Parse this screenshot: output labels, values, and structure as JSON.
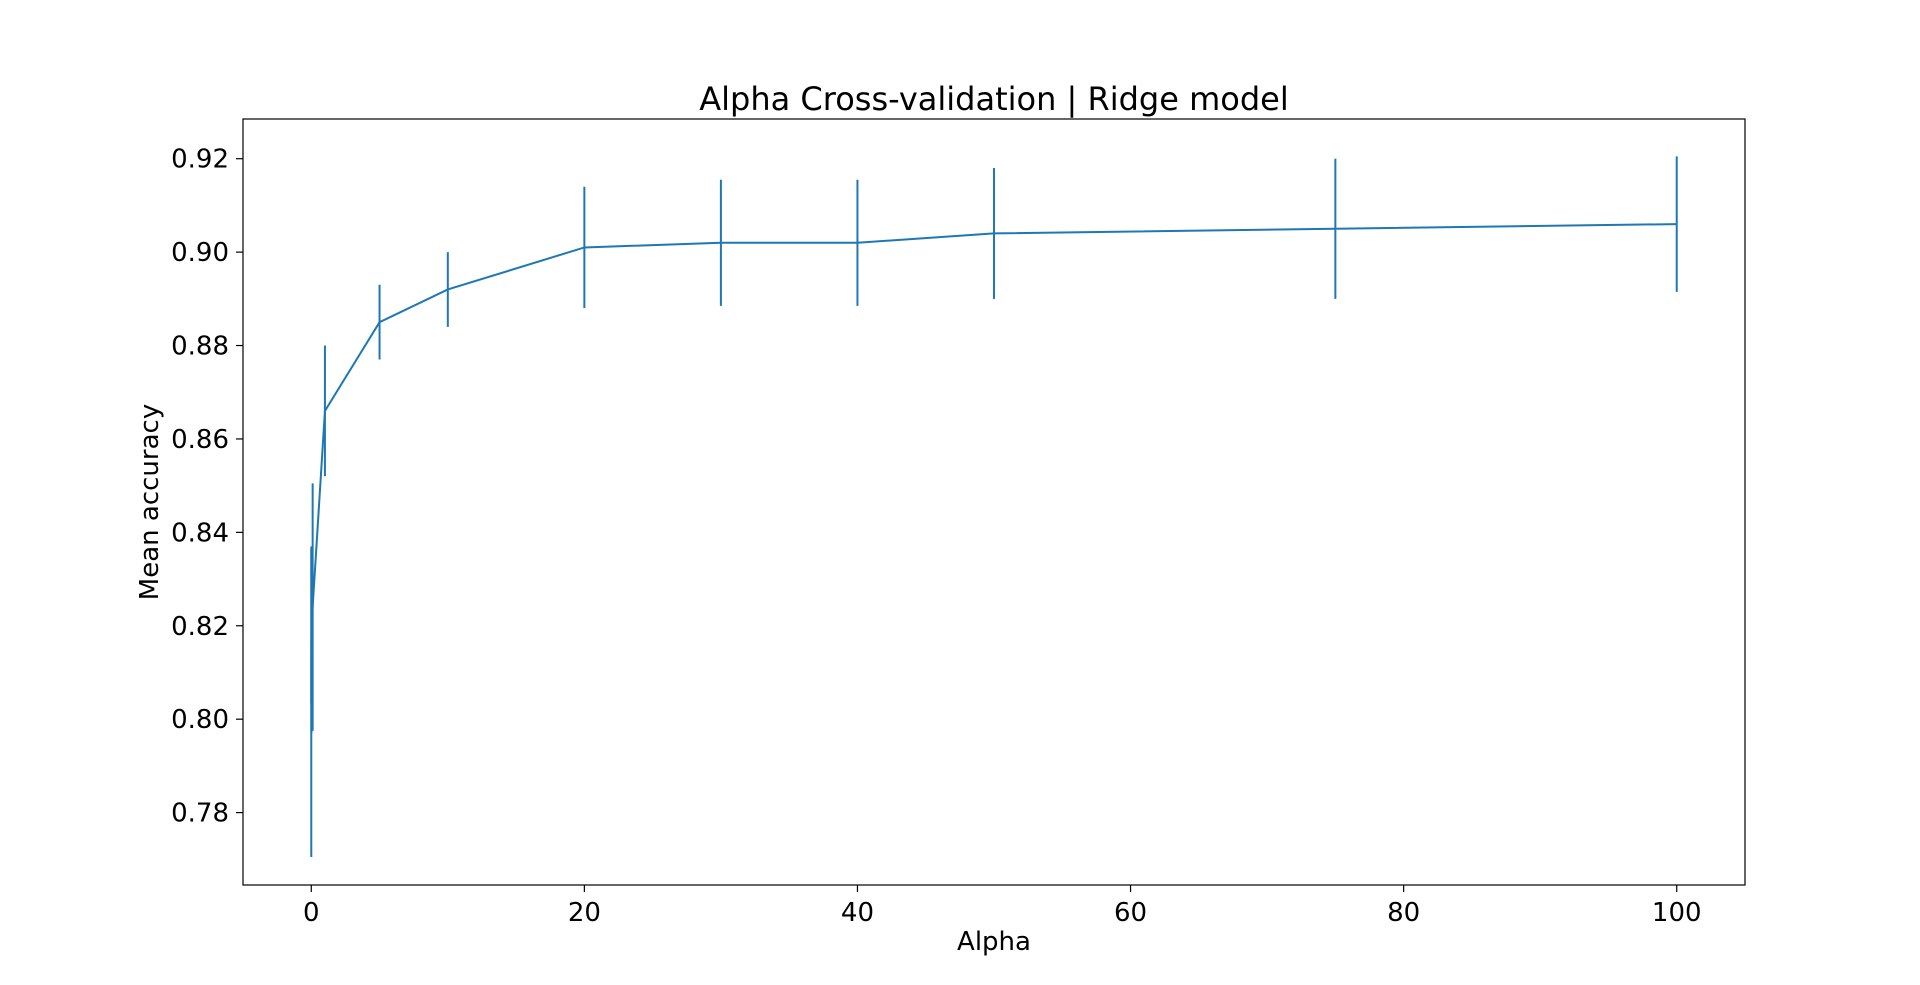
{
  "chart_data": {
    "type": "line",
    "title": "Alpha Cross-validation | Ridge model",
    "xlabel": "Alpha",
    "ylabel": "Mean accuracy",
    "xlim": [
      -5,
      105
    ],
    "ylim": [
      0.7645,
      0.9285
    ],
    "xticks": [
      0,
      20,
      40,
      60,
      80,
      100
    ],
    "xtick_labels": [
      "0",
      "20",
      "40",
      "60",
      "80",
      "100"
    ],
    "yticks": [
      0.78,
      0.8,
      0.82,
      0.84,
      0.86,
      0.88,
      0.9,
      0.92
    ],
    "ytick_labels": [
      "0.78",
      "0.80",
      "0.82",
      "0.84",
      "0.86",
      "0.88",
      "0.90",
      "0.92"
    ],
    "grid": false,
    "line_color": "#1f77b4",
    "series": [
      {
        "x": [
          0.001,
          0.01,
          0.1,
          1,
          5,
          10,
          20,
          30,
          40,
          50,
          75,
          100
        ],
        "y": [
          0.8035,
          0.817,
          0.824,
          0.866,
          0.885,
          0.892,
          0.901,
          0.902,
          0.902,
          0.904,
          0.905,
          0.906
        ],
        "yerr": [
          0.033,
          0.02,
          0.0265,
          0.014,
          0.008,
          0.008,
          0.013,
          0.0135,
          0.0135,
          0.014,
          0.015,
          0.0145
        ]
      }
    ]
  }
}
